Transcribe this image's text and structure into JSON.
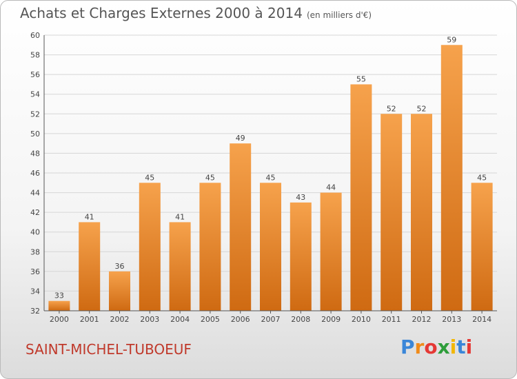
{
  "title": "Achats et Charges Externes 2000 à 2014",
  "unit": "(en milliers d'€)",
  "commune": "SAINT-MICHEL-TUBOEUF",
  "brand": {
    "text": "Proxiti",
    "letter_colors": [
      "#3a86d8",
      "#f08b1a",
      "#e53935",
      "#2e9d3a",
      "#f2b705",
      "#3a86d8",
      "#e53935"
    ]
  },
  "colors": {
    "bar_top": "#f6a24c",
    "bar_bottom": "#cf6a12",
    "grid": "#d6d6d6",
    "axis": "#555555",
    "commune_text": "#c0392b"
  },
  "chart_data": {
    "type": "bar",
    "title": "Achats et Charges Externes 2000 à 2014",
    "subtitle": "(en milliers d'€)",
    "xlabel": "",
    "ylabel": "",
    "categories": [
      "2000",
      "2001",
      "2002",
      "2003",
      "2004",
      "2005",
      "2006",
      "2007",
      "2008",
      "2009",
      "2010",
      "2011",
      "2012",
      "2013",
      "2014"
    ],
    "values": [
      33,
      41,
      36,
      45,
      41,
      45,
      49,
      45,
      43,
      44,
      55,
      52,
      52,
      59,
      45
    ],
    "ylim": [
      32,
      60
    ],
    "yticks": [
      32,
      34,
      36,
      38,
      40,
      42,
      44,
      46,
      48,
      50,
      52,
      54,
      56,
      58,
      60
    ],
    "grid": true,
    "data_labels": true
  }
}
